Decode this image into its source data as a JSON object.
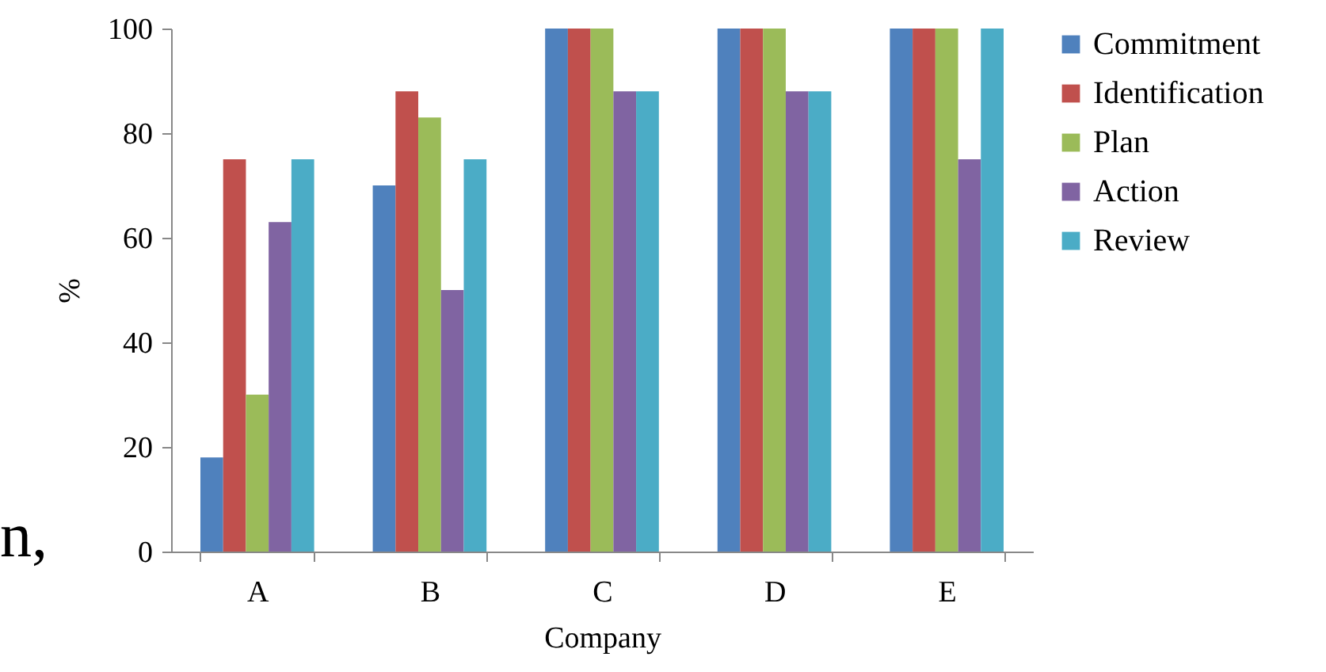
{
  "chart_data": {
    "type": "bar",
    "xlabel": "Company",
    "ylabel": "%",
    "categories": [
      "A",
      "B",
      "C",
      "D",
      "E"
    ],
    "series": [
      {
        "name": "Commitment",
        "color": "#4f81bd",
        "values": [
          18,
          70,
          100,
          100,
          100
        ]
      },
      {
        "name": "Identification",
        "color": "#c0504d",
        "values": [
          75,
          88,
          100,
          100,
          100
        ]
      },
      {
        "name": "Plan",
        "color": "#9bbb59",
        "values": [
          30,
          83,
          100,
          100,
          100
        ]
      },
      {
        "name": "Action",
        "color": "#8064a2",
        "values": [
          63,
          50,
          88,
          88,
          75
        ]
      },
      {
        "name": "Review",
        "color": "#4bacc6",
        "values": [
          75,
          75,
          88,
          88,
          100
        ]
      }
    ],
    "ylim": [
      0,
      100
    ],
    "yticks": [
      0,
      20,
      40,
      60,
      80,
      100
    ],
    "grid": false,
    "legend": "right",
    "annotations": [
      "n,"
    ]
  }
}
